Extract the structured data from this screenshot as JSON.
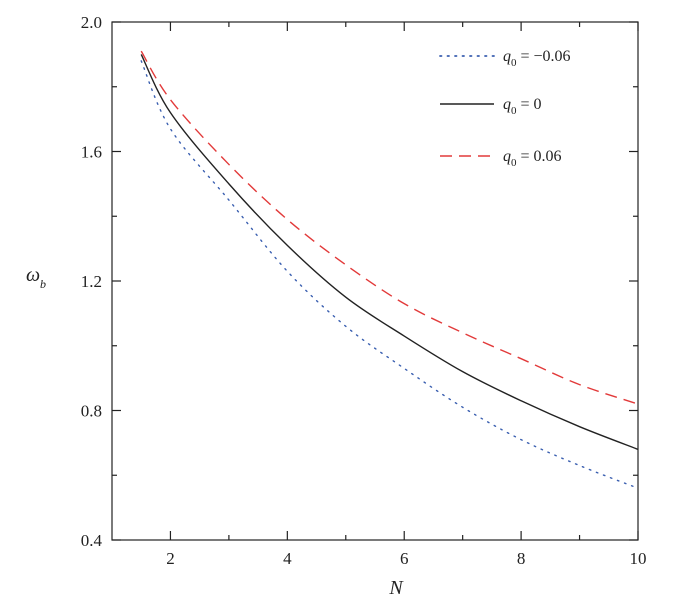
{
  "chart_data": {
    "type": "line",
    "xlabel": "N",
    "ylabel": "ω",
    "ylabel_subscript": "b",
    "xlim": [
      1.0,
      10.0
    ],
    "ylim": [
      0.4,
      2.0
    ],
    "xticks": [
      2,
      4,
      6,
      8,
      10
    ],
    "xtick_labels": [
      "2",
      "4",
      "6",
      "8",
      "10"
    ],
    "yticks": [
      0.4,
      0.8,
      1.2,
      1.6,
      2.0
    ],
    "ytick_labels": [
      "0.4",
      "0.8",
      "1.2",
      "1.6",
      "2.0"
    ],
    "grid": false,
    "legend_position": "top-right",
    "series": [
      {
        "name": "q0 = −0.06",
        "legend_q": "q",
        "legend_sub": "0",
        "legend_rest": " = −0.06",
        "color": "#3a5fb0",
        "dash": "dotted",
        "x": [
          1.5,
          2,
          3,
          4,
          5,
          6,
          7,
          8,
          9,
          10
        ],
        "y": [
          1.88,
          1.67,
          1.45,
          1.23,
          1.06,
          0.93,
          0.81,
          0.71,
          0.63,
          0.56
        ]
      },
      {
        "name": "q0 = 0",
        "legend_q": "q",
        "legend_sub": "0",
        "legend_rest": " = 0",
        "color": "#222222",
        "dash": "solid",
        "x": [
          1.5,
          2,
          3,
          4,
          5,
          6,
          7,
          8,
          9,
          10
        ],
        "y": [
          1.9,
          1.72,
          1.5,
          1.31,
          1.15,
          1.03,
          0.92,
          0.83,
          0.75,
          0.68
        ]
      },
      {
        "name": "q0 = 0.06",
        "legend_q": "q",
        "legend_sub": "0",
        "legend_rest": " = 0.06",
        "color": "#e23a3a",
        "dash": "dashed",
        "x": [
          1.5,
          2,
          3,
          4,
          5,
          6,
          7,
          8,
          9,
          10
        ],
        "y": [
          1.91,
          1.76,
          1.56,
          1.39,
          1.25,
          1.13,
          1.04,
          0.96,
          0.88,
          0.82
        ]
      }
    ]
  }
}
